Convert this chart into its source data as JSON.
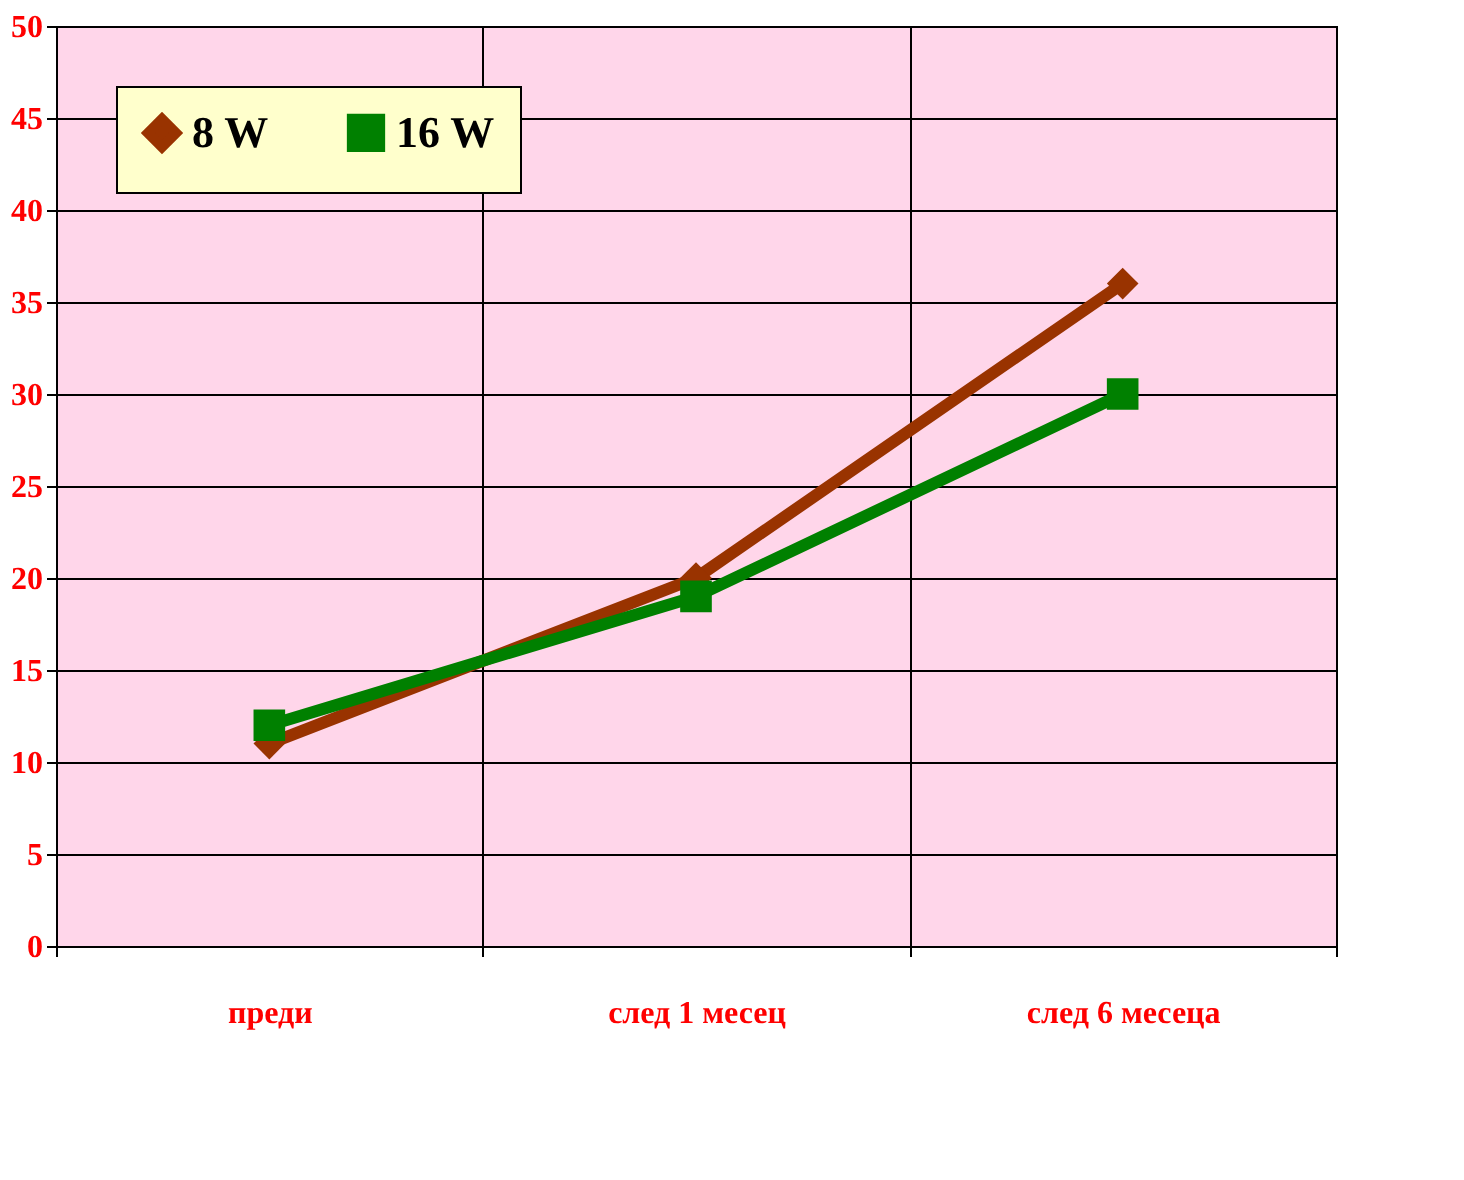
{
  "chart_data": {
    "type": "line",
    "categories": [
      "преди",
      "след 1 месец",
      "след 6 месеца"
    ],
    "series": [
      {
        "name": "8 W",
        "color": "#993300",
        "values": [
          11,
          20,
          36
        ],
        "marker": "diamond"
      },
      {
        "name": "16 W",
        "color": "#008000",
        "values": [
          12,
          19,
          30
        ],
        "marker": "square"
      }
    ],
    "ylim": [
      0,
      50
    ],
    "yticks": [
      0,
      5,
      10,
      15,
      20,
      25,
      30,
      35,
      40,
      45,
      50
    ],
    "grid": true,
    "legend": "top left",
    "line_style": "solid"
  }
}
